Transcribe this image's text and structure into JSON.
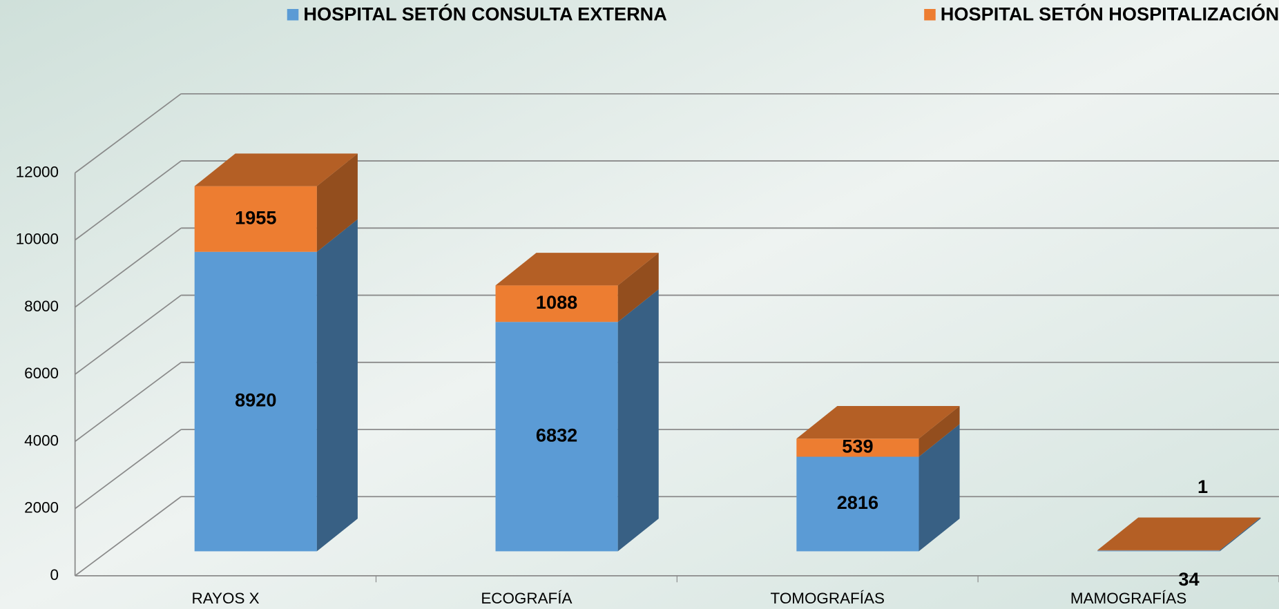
{
  "chart_data": {
    "type": "bar3d_stacked",
    "categories": [
      "RAYOS X",
      "ECOGRAFÍA",
      "TOMOGRAFÍAS",
      "MAMOGRAFÍAS"
    ],
    "series": [
      {
        "name": "HOSPITAL SETÓN CONSULTA EXTERNA",
        "color": "#5b9bd5",
        "values": [
          8920,
          6832,
          2816,
          34
        ]
      },
      {
        "name": "HOSPITAL SETÓN HOSPITALIZACIÓN",
        "color": "#ed7d31",
        "values": [
          1955,
          1088,
          539,
          1
        ]
      }
    ],
    "ylim": [
      0,
      12000
    ],
    "yticks": [
      0,
      2000,
      4000,
      6000,
      8000,
      10000,
      12000
    ],
    "grid": true,
    "legend": "top"
  }
}
